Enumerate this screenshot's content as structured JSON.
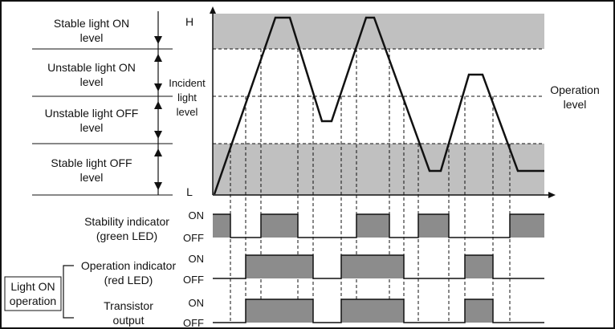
{
  "levels": {
    "stable_on": [
      "Stable light ON",
      "level"
    ],
    "unstable_on": [
      "Unstable light ON",
      "level"
    ],
    "unstable_off": [
      "Unstable light OFF",
      "level"
    ],
    "stable_off": [
      "Stable light OFF",
      "level"
    ]
  },
  "axis": {
    "high": "H",
    "low": "L",
    "ylabel": [
      "Incident",
      "light",
      "level"
    ]
  },
  "operation_level": [
    "Operation",
    "level"
  ],
  "stability": {
    "title": [
      "Stability indicator",
      "(green LED)"
    ],
    "on": "ON",
    "off": "OFF"
  },
  "operation_indicator": {
    "title": [
      "Operation indicator",
      "(red LED)"
    ],
    "on": "ON",
    "off": "OFF"
  },
  "transistor": {
    "title": [
      "Transistor",
      "output"
    ],
    "on": "ON",
    "off": "OFF"
  },
  "mode": [
    "Light ON",
    "operation"
  ],
  "colors": {
    "stable_band": "#c0c0c0",
    "signal_fill": "#8c8c8c",
    "line": "#111111"
  }
}
